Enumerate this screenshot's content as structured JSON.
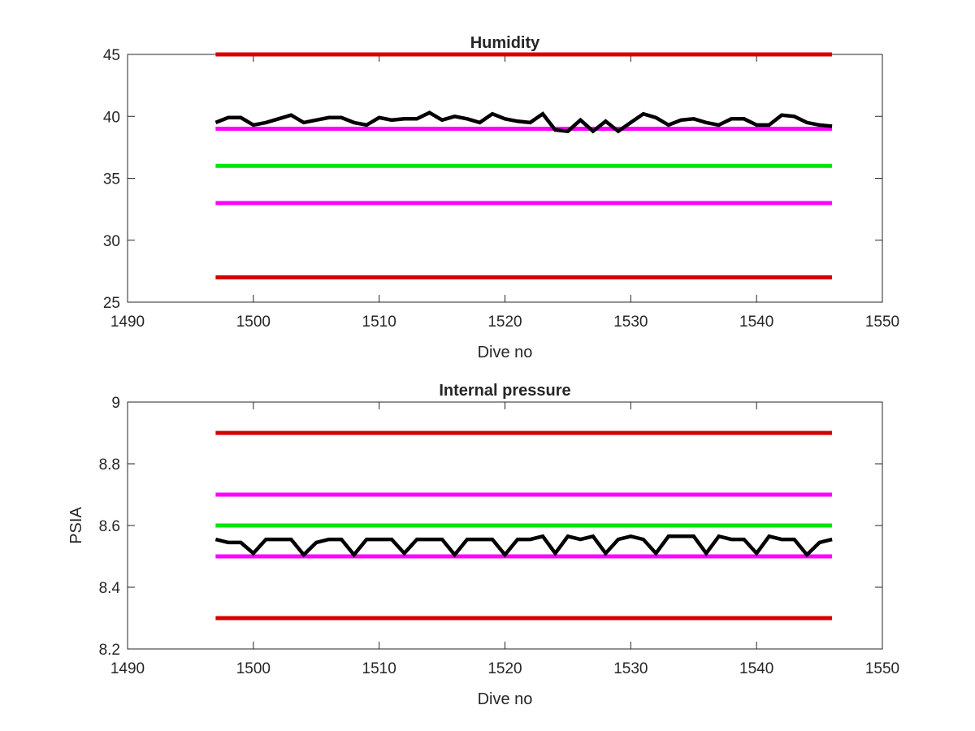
{
  "chart_data": [
    {
      "type": "line",
      "title": "Humidity",
      "xlabel": "Dive no",
      "ylabel": "",
      "xlim": [
        1490,
        1550
      ],
      "ylim": [
        25,
        45
      ],
      "xticks": [
        "1490",
        "1500",
        "1510",
        "1520",
        "1530",
        "1540",
        "1550"
      ],
      "yticks": [
        "25",
        "30",
        "35",
        "40",
        "45"
      ],
      "grid": false,
      "reference_lines": [
        {
          "y": 45,
          "x": [
            1497,
            1546
          ],
          "color": "#d40000"
        },
        {
          "y": 39,
          "x": [
            1497,
            1546
          ],
          "color": "#ff00ff"
        },
        {
          "y": 36,
          "x": [
            1497,
            1546
          ],
          "color": "#00e600"
        },
        {
          "y": 33,
          "x": [
            1497,
            1546
          ],
          "color": "#ff00ff"
        },
        {
          "y": 27,
          "x": [
            1497,
            1546
          ],
          "color": "#d40000"
        }
      ],
      "series": [
        {
          "color": "#000000",
          "x": [
            1497,
            1498,
            1499,
            1500,
            1501,
            1502,
            1503,
            1504,
            1505,
            1506,
            1507,
            1508,
            1509,
            1510,
            1511,
            1512,
            1513,
            1514,
            1515,
            1516,
            1517,
            1518,
            1519,
            1520,
            1521,
            1522,
            1523,
            1524,
            1525,
            1526,
            1527,
            1528,
            1529,
            1530,
            1531,
            1532,
            1533,
            1534,
            1535,
            1536,
            1537,
            1538,
            1539,
            1540,
            1541,
            1542,
            1543,
            1544,
            1545,
            1546
          ],
          "y": [
            39.5,
            39.9,
            39.9,
            39.3,
            39.5,
            39.8,
            40.1,
            39.5,
            39.7,
            39.9,
            39.9,
            39.5,
            39.3,
            39.9,
            39.7,
            39.8,
            39.8,
            40.3,
            39.7,
            40.0,
            39.8,
            39.5,
            40.2,
            39.8,
            39.6,
            39.5,
            40.2,
            38.9,
            38.8,
            39.7,
            38.8,
            39.6,
            38.8,
            39.5,
            40.2,
            39.9,
            39.3,
            39.7,
            39.8,
            39.5,
            39.3,
            39.8,
            39.8,
            39.3,
            39.3,
            40.1,
            40.0,
            39.5,
            39.3,
            39.2
          ]
        }
      ]
    },
    {
      "type": "line",
      "title": "Internal pressure",
      "xlabel": "Dive no",
      "ylabel": "PSIA",
      "xlim": [
        1490,
        1550
      ],
      "ylim": [
        8.2,
        9.0
      ],
      "xticks": [
        "1490",
        "1500",
        "1510",
        "1520",
        "1530",
        "1540",
        "1550"
      ],
      "yticks": [
        "8.2",
        "8.4",
        "8.6",
        "8.8",
        "9"
      ],
      "grid": false,
      "reference_lines": [
        {
          "y": 8.9,
          "x": [
            1497,
            1546
          ],
          "color": "#d40000"
        },
        {
          "y": 8.7,
          "x": [
            1497,
            1546
          ],
          "color": "#ff00ff"
        },
        {
          "y": 8.6,
          "x": [
            1497,
            1546
          ],
          "color": "#00e600"
        },
        {
          "y": 8.5,
          "x": [
            1497,
            1546
          ],
          "color": "#ff00ff"
        },
        {
          "y": 8.3,
          "x": [
            1497,
            1546
          ],
          "color": "#d40000"
        }
      ],
      "series": [
        {
          "color": "#000000",
          "x": [
            1497,
            1498,
            1499,
            1500,
            1501,
            1502,
            1503,
            1504,
            1505,
            1506,
            1507,
            1508,
            1509,
            1510,
            1511,
            1512,
            1513,
            1514,
            1515,
            1516,
            1517,
            1518,
            1519,
            1520,
            1521,
            1522,
            1523,
            1524,
            1525,
            1526,
            1527,
            1528,
            1529,
            1530,
            1531,
            1532,
            1533,
            1534,
            1535,
            1536,
            1537,
            1538,
            1539,
            1540,
            1541,
            1542,
            1543,
            1544,
            1545,
            1546
          ],
          "y": [
            8.555,
            8.545,
            8.545,
            8.51,
            8.555,
            8.555,
            8.555,
            8.505,
            8.545,
            8.555,
            8.555,
            8.505,
            8.555,
            8.555,
            8.555,
            8.51,
            8.555,
            8.555,
            8.555,
            8.505,
            8.555,
            8.555,
            8.555,
            8.505,
            8.555,
            8.555,
            8.565,
            8.51,
            8.565,
            8.555,
            8.565,
            8.51,
            8.555,
            8.565,
            8.555,
            8.51,
            8.565,
            8.565,
            8.565,
            8.51,
            8.565,
            8.555,
            8.555,
            8.51,
            8.565,
            8.555,
            8.555,
            8.505,
            8.545,
            8.555
          ]
        }
      ]
    }
  ]
}
